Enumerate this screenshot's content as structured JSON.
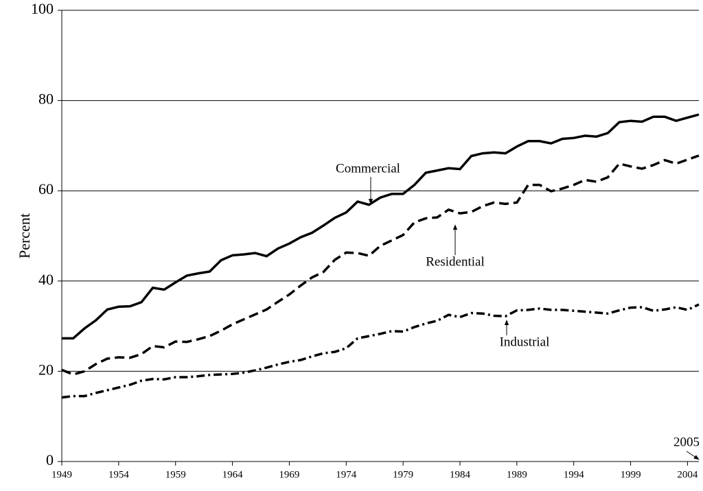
{
  "chart_data": {
    "type": "line",
    "y_label": "Percent",
    "x": [
      1949,
      1950,
      1951,
      1952,
      1953,
      1954,
      1955,
      1956,
      1957,
      1958,
      1959,
      1960,
      1961,
      1962,
      1963,
      1964,
      1965,
      1966,
      1967,
      1968,
      1969,
      1970,
      1971,
      1972,
      1973,
      1974,
      1975,
      1976,
      1977,
      1978,
      1979,
      1980,
      1981,
      1982,
      1983,
      1984,
      1985,
      1986,
      1987,
      1988,
      1989,
      1990,
      1991,
      1992,
      1993,
      1994,
      1995,
      1996,
      1997,
      1998,
      1999,
      2000,
      2001,
      2002,
      2003,
      2004,
      2005
    ],
    "series": [
      {
        "name": "Commercial",
        "color": "#000000",
        "style": "solid",
        "values": [
          27.3,
          27.3,
          29.5,
          31.3,
          33.7,
          34.3,
          34.4,
          35.3,
          38.5,
          38.1,
          39.7,
          41.2,
          41.7,
          42.1,
          44.6,
          45.7,
          45.9,
          46.2,
          45.5,
          47.2,
          48.3,
          49.7,
          50.7,
          52.3,
          54.0,
          55.2,
          57.6,
          56.9,
          58.5,
          59.3,
          59.3,
          61.3,
          64.0,
          64.5,
          65.0,
          64.8,
          67.7,
          68.3,
          68.5,
          68.3,
          69.8,
          71.0,
          71.0,
          70.5,
          71.5,
          71.7,
          72.2,
          72.0,
          72.8,
          75.2,
          75.5,
          75.3,
          76.4,
          76.4,
          75.5,
          76.2,
          76.9
        ]
      },
      {
        "name": "Residential",
        "color": "#000000",
        "style": "dashed",
        "values": [
          20.3,
          19.3,
          20.0,
          21.6,
          22.8,
          23.1,
          23.0,
          23.8,
          25.6,
          25.3,
          26.6,
          26.5,
          27.1,
          27.8,
          29.0,
          30.4,
          31.5,
          32.6,
          33.7,
          35.4,
          37.0,
          39.0,
          40.8,
          42.0,
          44.7,
          46.3,
          46.2,
          45.6,
          47.8,
          49.0,
          50.2,
          53.0,
          53.9,
          54.1,
          55.8,
          55.0,
          55.3,
          56.6,
          57.4,
          57.1,
          57.4,
          61.3,
          61.3,
          59.9,
          60.5,
          61.3,
          62.4,
          62.0,
          63.0,
          66.0,
          65.4,
          64.9,
          65.7,
          66.8,
          66.0,
          66.9,
          67.8
        ]
      },
      {
        "name": "Industrial",
        "color": "#000000",
        "style": "dashdot",
        "values": [
          14.2,
          14.5,
          14.5,
          15.2,
          15.8,
          16.4,
          17.0,
          17.9,
          18.3,
          18.2,
          18.7,
          18.7,
          18.9,
          19.2,
          19.3,
          19.4,
          19.7,
          20.2,
          20.8,
          21.5,
          22.1,
          22.5,
          23.3,
          24.0,
          24.3,
          25.1,
          27.3,
          27.8,
          28.3,
          28.9,
          28.8,
          29.8,
          30.6,
          31.2,
          32.5,
          32.0,
          32.9,
          32.8,
          32.3,
          32.2,
          33.5,
          33.6,
          33.9,
          33.6,
          33.6,
          33.4,
          33.2,
          33.0,
          32.8,
          33.5,
          34.1,
          34.2,
          33.4,
          33.7,
          34.2,
          33.6,
          34.8
        ]
      }
    ],
    "annotations": [
      "Commercial",
      "Residential",
      "Industrial",
      "2005"
    ],
    "xlim": [
      1949,
      2005
    ],
    "xticks": [
      1949,
      1954,
      1959,
      1964,
      1969,
      1974,
      1979,
      1984,
      1989,
      1994,
      1999,
      2004
    ],
    "ylim": [
      0,
      100
    ],
    "yticks": [
      0,
      20,
      40,
      60,
      80,
      100
    ],
    "grid": true
  }
}
